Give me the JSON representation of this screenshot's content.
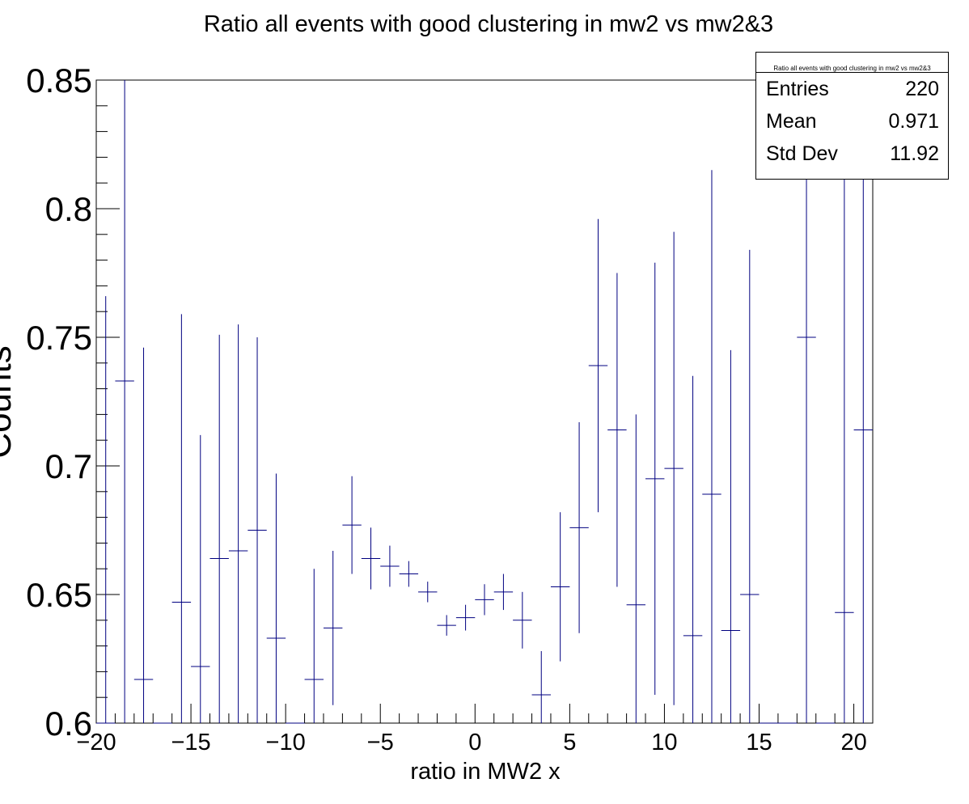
{
  "chart_data": {
    "type": "scatter",
    "title": "Ratio all events with good clustering in mw2 vs mw2&3",
    "xlabel": "ratio in MW2 x",
    "ylabel": "Counts",
    "xlim": [
      -20,
      21
    ],
    "ylim": [
      0.6,
      0.85
    ],
    "xticks": [
      -20,
      -15,
      -10,
      -5,
      0,
      5,
      10,
      15,
      20
    ],
    "xtick_labels": [
      "−20",
      "−15",
      "−10",
      "−5",
      "0",
      "5",
      "10",
      "15",
      "20"
    ],
    "yticks": [
      0.6,
      0.65,
      0.7,
      0.75,
      0.8,
      0.85
    ],
    "ytick_labels": [
      "0.6",
      "0.65",
      "0.7",
      "0.75",
      "0.8",
      "0.85"
    ],
    "bin_width": 1,
    "series": [
      {
        "color": "#000080",
        "points": [
          {
            "x": -19.5,
            "y": 0.6,
            "err": 0.166
          },
          {
            "x": -18.5,
            "y": 0.733,
            "err": 0.2
          },
          {
            "x": -17.5,
            "y": 0.617,
            "err": 0.129
          },
          {
            "x": -16.5,
            "y": 0.6,
            "err": 0
          },
          {
            "x": -15.5,
            "y": 0.647,
            "err": 0.112
          },
          {
            "x": -14.5,
            "y": 0.622,
            "err": 0.09
          },
          {
            "x": -13.5,
            "y": 0.664,
            "err": 0.087
          },
          {
            "x": -12.5,
            "y": 0.667,
            "err": 0.088
          },
          {
            "x": -11.5,
            "y": 0.675,
            "err": 0.075
          },
          {
            "x": -10.5,
            "y": 0.633,
            "err": 0.064
          },
          {
            "x": -9.5,
            "y": 0.6,
            "err": 0
          },
          {
            "x": -8.5,
            "y": 0.617,
            "err": 0.043
          },
          {
            "x": -7.5,
            "y": 0.637,
            "err": 0.03
          },
          {
            "x": -6.5,
            "y": 0.677,
            "err": 0.019
          },
          {
            "x": -5.5,
            "y": 0.664,
            "err": 0.012
          },
          {
            "x": -4.5,
            "y": 0.661,
            "err": 0.008
          },
          {
            "x": -3.5,
            "y": 0.658,
            "err": 0.005
          },
          {
            "x": -2.5,
            "y": 0.651,
            "err": 0.004
          },
          {
            "x": -1.5,
            "y": 0.638,
            "err": 0.004
          },
          {
            "x": -0.5,
            "y": 0.641,
            "err": 0.005
          },
          {
            "x": 0.5,
            "y": 0.648,
            "err": 0.006
          },
          {
            "x": 1.5,
            "y": 0.651,
            "err": 0.007
          },
          {
            "x": 2.5,
            "y": 0.64,
            "err": 0.011
          },
          {
            "x": 3.5,
            "y": 0.611,
            "err": 0.017
          },
          {
            "x": 4.5,
            "y": 0.653,
            "err": 0.029
          },
          {
            "x": 5.5,
            "y": 0.676,
            "err": 0.041
          },
          {
            "x": 6.5,
            "y": 0.739,
            "err": 0.057
          },
          {
            "x": 7.5,
            "y": 0.714,
            "err": 0.061
          },
          {
            "x": 8.5,
            "y": 0.646,
            "err": 0.074
          },
          {
            "x": 9.5,
            "y": 0.695,
            "err": 0.084
          },
          {
            "x": 10.5,
            "y": 0.699,
            "err": 0.092
          },
          {
            "x": 11.5,
            "y": 0.634,
            "err": 0.101
          },
          {
            "x": 12.5,
            "y": 0.689,
            "err": 0.126
          },
          {
            "x": 13.5,
            "y": 0.636,
            "err": 0.109
          },
          {
            "x": 14.5,
            "y": 0.65,
            "err": 0.134
          },
          {
            "x": 15.5,
            "y": 0.6,
            "err": 0
          },
          {
            "x": 16.5,
            "y": 0.6,
            "err": 0
          },
          {
            "x": 17.5,
            "y": 0.75,
            "err": 0.25
          },
          {
            "x": 18.5,
            "y": 0.6,
            "err": 0
          },
          {
            "x": 19.5,
            "y": 0.643,
            "err": 0.2
          },
          {
            "x": 20.5,
            "y": 0.714,
            "err": 0.2
          }
        ]
      }
    ],
    "legend": "none"
  },
  "stats": {
    "title": "Ratio all events with good clustering in mw2 vs mw2&3",
    "rows": [
      {
        "label": "Entries",
        "value": "220"
      },
      {
        "label": "Mean",
        "value": "0.971"
      },
      {
        "label": "Std Dev",
        "value": "11.92"
      }
    ]
  }
}
